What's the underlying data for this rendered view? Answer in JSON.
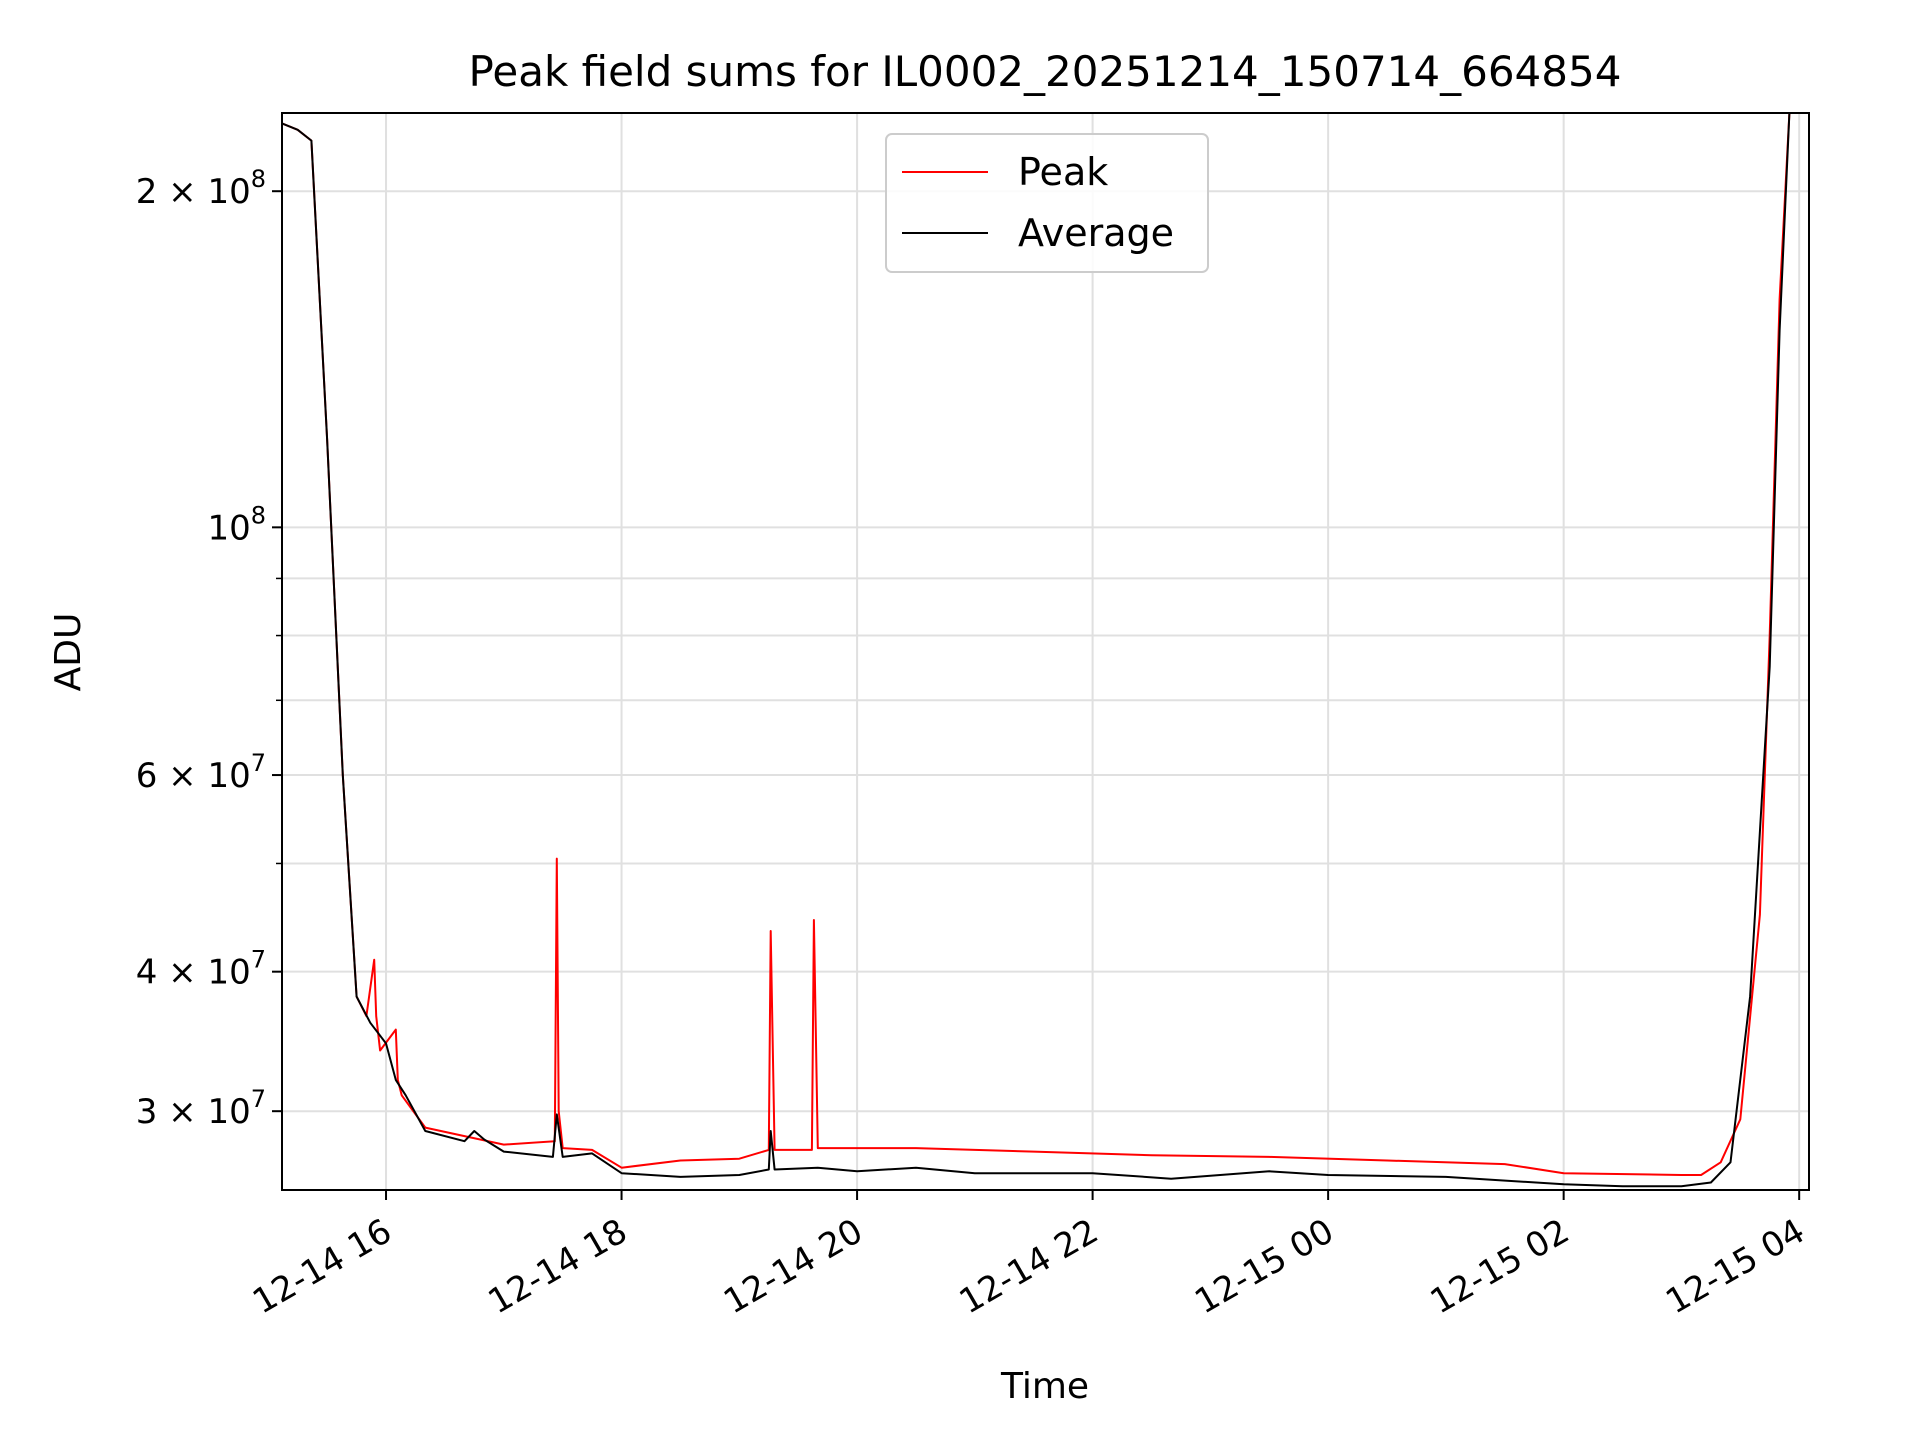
{
  "chart_data": {
    "type": "line",
    "title": "Peak field sums for IL0002_20251214_150714_664854",
    "xlabel": "Time",
    "ylabel": "ADU",
    "yscale": "log",
    "xlim": [
      "2025-12-14 15:07",
      "2025-12-15 04:05"
    ],
    "ylim": [
      25500000,
      235000000
    ],
    "grid": true,
    "legend": {
      "placement": "upper-center",
      "entries": [
        "Peak",
        "Average"
      ]
    },
    "colors": {
      "Peak": "#ff0000",
      "Average": "#000000"
    },
    "x_ticks": [
      {
        "value": "2025-12-14 16:00",
        "label": "12-14 16"
      },
      {
        "value": "2025-12-14 18:00",
        "label": "12-14 18"
      },
      {
        "value": "2025-12-14 20:00",
        "label": "12-14 20"
      },
      {
        "value": "2025-12-14 22:00",
        "label": "12-14 22"
      },
      {
        "value": "2025-12-15 00:00",
        "label": "12-15 00"
      },
      {
        "value": "2025-12-15 02:00",
        "label": "12-15 02"
      },
      {
        "value": "2025-12-15 04:00",
        "label": "12-15 04"
      }
    ],
    "y_ticks": [
      {
        "value": 30000000,
        "base": "3",
        "exp": "7"
      },
      {
        "value": 40000000,
        "base": "4",
        "exp": "7"
      },
      {
        "value": 60000000,
        "base": "6",
        "exp": "7"
      },
      {
        "value": 100000000,
        "base": "",
        "exp": "8"
      },
      {
        "value": 200000000,
        "base": "2",
        "exp": "8"
      }
    ],
    "y_minor_ticks": [
      50000000,
      70000000,
      80000000,
      90000000
    ],
    "series": [
      {
        "name": "Peak",
        "x": [
          "2025-12-14 15:07",
          "2025-12-14 15:15",
          "2025-12-14 15:22",
          "2025-12-14 15:30",
          "2025-12-14 15:38",
          "2025-12-14 15:45",
          "2025-12-14 15:50",
          "2025-12-14 15:54",
          "2025-12-14 15:55",
          "2025-12-14 15:57",
          "2025-12-14 16:05",
          "2025-12-14 16:06",
          "2025-12-14 16:08",
          "2025-12-14 16:20",
          "2025-12-14 16:40",
          "2025-12-14 17:00",
          "2025-12-14 17:26",
          "2025-12-14 17:27",
          "2025-12-14 17:28",
          "2025-12-14 17:30",
          "2025-12-14 17:45",
          "2025-12-14 18:00",
          "2025-12-14 18:30",
          "2025-12-14 19:00",
          "2025-12-14 19:15",
          "2025-12-14 19:16",
          "2025-12-14 19:18",
          "2025-12-14 19:37",
          "2025-12-14 19:38",
          "2025-12-14 19:40",
          "2025-12-14 20:30",
          "2025-12-14 21:30",
          "2025-12-14 22:30",
          "2025-12-14 23:30",
          "2025-12-15 00:30",
          "2025-12-15 01:30",
          "2025-12-15 02:00",
          "2025-12-15 03:00",
          "2025-12-15 03:10",
          "2025-12-15 03:20",
          "2025-12-15 03:30",
          "2025-12-15 03:40",
          "2025-12-15 03:45",
          "2025-12-15 03:50",
          "2025-12-15 03:55"
        ],
        "y": [
          230000000,
          227000000,
          222000000,
          120000000,
          60000000,
          38000000,
          36500000,
          41000000,
          36500000,
          34000000,
          35500000,
          32000000,
          31000000,
          29000000,
          28500000,
          28000000,
          28200000,
          50500000,
          30000000,
          27800000,
          27700000,
          26700000,
          27100000,
          27200000,
          27700000,
          43500000,
          27700000,
          27700000,
          44500000,
          27800000,
          27800000,
          27600000,
          27400000,
          27300000,
          27100000,
          26900000,
          26400000,
          26300000,
          26300000,
          27000000,
          29500000,
          45000000,
          80000000,
          160000000,
          235000000
        ]
      },
      {
        "name": "Average",
        "x": [
          "2025-12-14 15:07",
          "2025-12-14 15:15",
          "2025-12-14 15:22",
          "2025-12-14 15:30",
          "2025-12-14 15:38",
          "2025-12-14 15:45",
          "2025-12-14 15:52",
          "2025-12-14 16:00",
          "2025-12-14 16:05",
          "2025-12-14 16:10",
          "2025-12-14 16:20",
          "2025-12-14 16:40",
          "2025-12-14 16:45",
          "2025-12-14 16:50",
          "2025-12-14 17:00",
          "2025-12-14 17:25",
          "2025-12-14 17:27",
          "2025-12-14 17:30",
          "2025-12-14 17:45",
          "2025-12-14 18:00",
          "2025-12-14 18:30",
          "2025-12-14 19:00",
          "2025-12-14 19:15",
          "2025-12-14 19:16",
          "2025-12-14 19:18",
          "2025-12-14 19:40",
          "2025-12-14 20:00",
          "2025-12-14 20:30",
          "2025-12-14 21:00",
          "2025-12-14 22:00",
          "2025-12-14 22:40",
          "2025-12-14 23:30",
          "2025-12-15 00:00",
          "2025-12-15 01:00",
          "2025-12-15 02:00",
          "2025-12-15 02:30",
          "2025-12-15 03:00",
          "2025-12-15 03:15",
          "2025-12-15 03:25",
          "2025-12-15 03:35",
          "2025-12-15 03:45",
          "2025-12-15 03:50",
          "2025-12-15 03:55"
        ],
        "y": [
          230000000,
          227000000,
          222000000,
          120000000,
          60000000,
          38000000,
          36000000,
          34500000,
          32000000,
          31000000,
          28800000,
          28200000,
          28800000,
          28300000,
          27600000,
          27300000,
          29800000,
          27300000,
          27500000,
          26400000,
          26200000,
          26300000,
          26600000,
          28800000,
          26600000,
          26700000,
          26500000,
          26700000,
          26400000,
          26400000,
          26100000,
          26500000,
          26300000,
          26200000,
          25800000,
          25700000,
          25700000,
          25900000,
          27000000,
          38000000,
          75000000,
          150000000,
          235000000
        ]
      }
    ]
  }
}
